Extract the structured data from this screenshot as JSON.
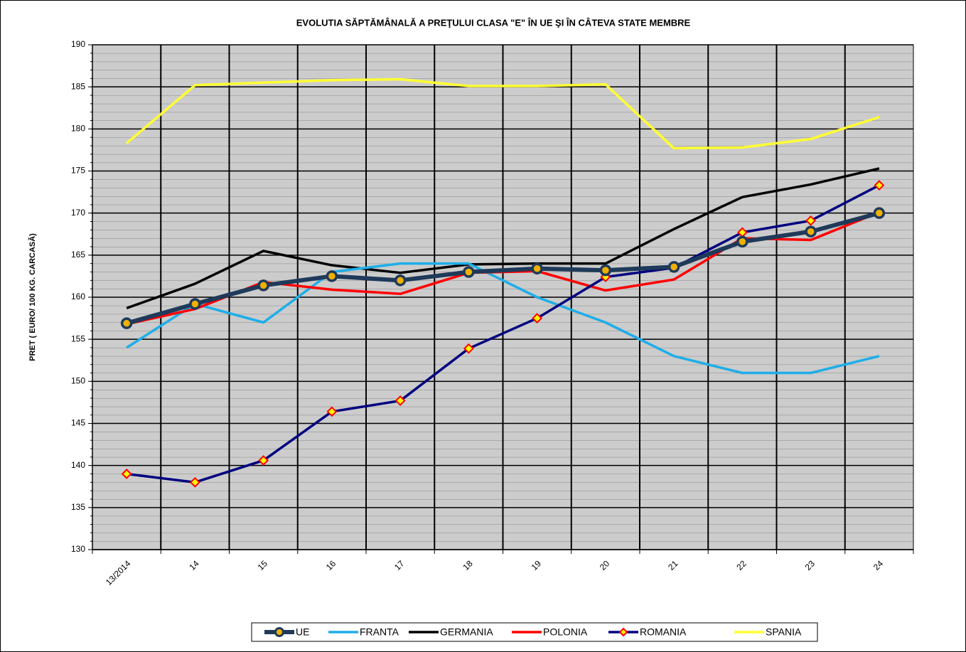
{
  "chart_data": {
    "type": "line",
    "title": "EVOLUTIA SĂPTĂMÂNALĂ  A PREŢULUI CLASA \"E\"  ÎN  UE ŞI ÎN  CÂTEVA  STATE MEMBRE",
    "y_label": "PRET ( EURO/ 100 KG. CARCASĂ)",
    "categories": [
      "13/2014",
      "14",
      "15",
      "16",
      "17",
      "18",
      "19",
      "20",
      "21",
      "22",
      "23",
      "24"
    ],
    "ylim": [
      130,
      190
    ],
    "yticks": [
      130,
      135,
      140,
      145,
      150,
      155,
      160,
      165,
      170,
      175,
      180,
      185,
      190
    ],
    "minor_step": 1,
    "grid": true,
    "legend": "bottom",
    "series": [
      {
        "name": "UE",
        "color": "#1f3a5a",
        "marker": "circle",
        "values": [
          156.9,
          159.2,
          161.4,
          162.5,
          162.0,
          163.0,
          163.4,
          163.2,
          163.6,
          166.6,
          167.8,
          170.0
        ]
      },
      {
        "name": "FRANTA",
        "color": "#1eaee8",
        "values": [
          154.0,
          159.2,
          157.0,
          163.0,
          164.0,
          164.0,
          160.0,
          157.0,
          153.0,
          151.0,
          151.0,
          153.0
        ]
      },
      {
        "name": "GERMANIA",
        "color": "#000000",
        "values": [
          158.7,
          161.6,
          165.5,
          163.8,
          162.9,
          163.9,
          164.0,
          164.0,
          168.1,
          171.9,
          173.4,
          175.3
        ]
      },
      {
        "name": "POLONIA",
        "color": "#ff0000",
        "values": [
          156.8,
          158.6,
          161.8,
          160.9,
          160.4,
          162.9,
          163.1,
          160.8,
          162.1,
          167.0,
          166.8,
          170.1
        ]
      },
      {
        "name": "ROMANIA",
        "color": "#000080",
        "marker": "diamond",
        "values": [
          139.0,
          138.0,
          140.6,
          146.4,
          147.7,
          153.9,
          157.5,
          162.4,
          163.5,
          167.7,
          169.1,
          173.3
        ]
      },
      {
        "name": "SPANIA",
        "color": "#ffff33",
        "values": [
          178.3,
          185.2,
          185.5,
          185.8,
          185.9,
          185.1,
          185.1,
          185.3,
          177.7,
          177.8,
          178.8,
          181.4
        ]
      }
    ]
  }
}
